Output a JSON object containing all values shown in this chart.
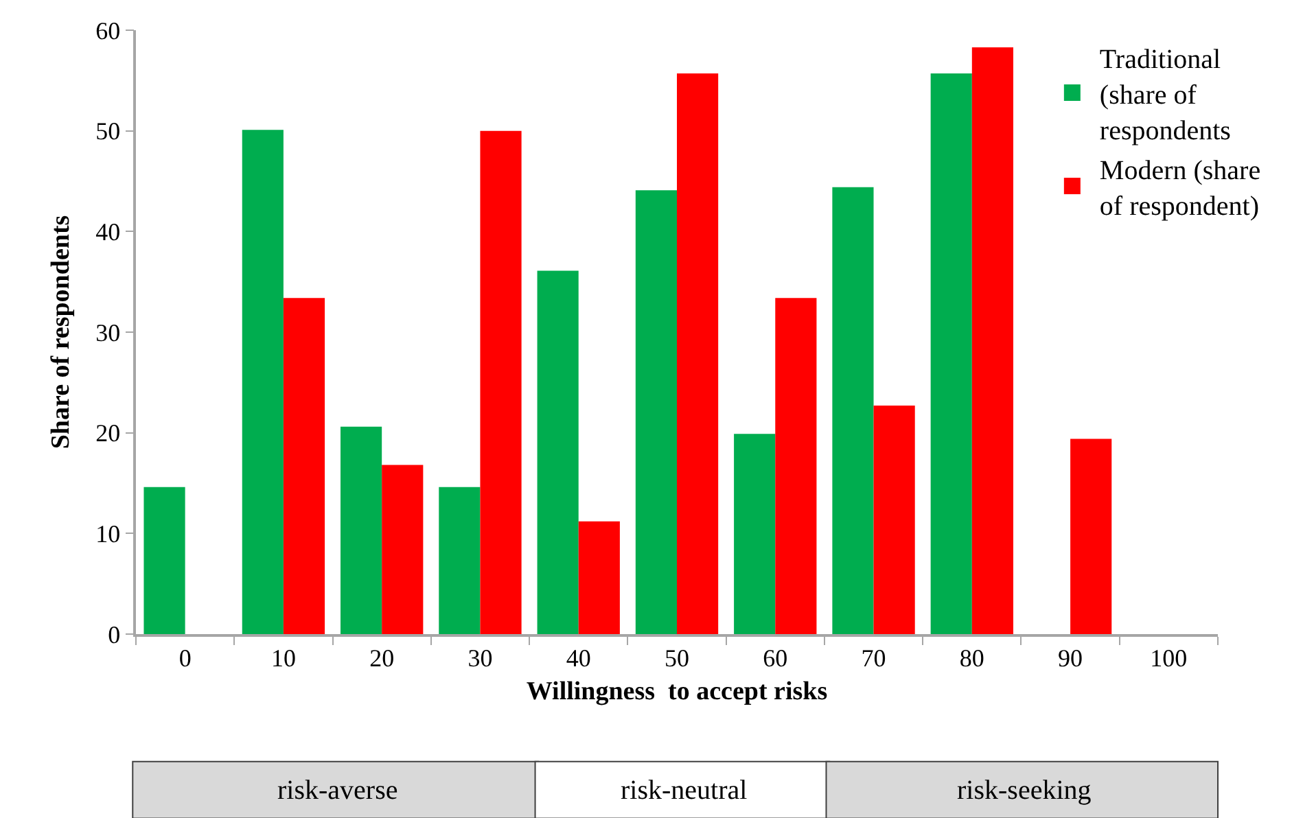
{
  "chart_data": {
    "type": "bar",
    "categories": [
      "0",
      "10",
      "20",
      "30",
      "40",
      "50",
      "60",
      "70",
      "80",
      "90",
      "100"
    ],
    "series": [
      {
        "name": "Traditional (share of respondents",
        "color": "#00ad4f",
        "values": [
          14.6,
          50.1,
          20.6,
          14.6,
          36.1,
          44.1,
          19.9,
          44.4,
          55.7,
          null,
          null
        ]
      },
      {
        "name": "Modern (share of respondent)",
        "color": "#ff0000",
        "values": [
          null,
          33.4,
          16.8,
          50,
          11.2,
          55.7,
          33.4,
          22.7,
          58.3,
          19.4,
          null
        ]
      }
    ],
    "xlabel": "Willingness  to accept risks",
    "ylabel": "Share of respondents",
    "ylim": [
      0,
      60
    ],
    "yticks": [
      0,
      10,
      20,
      30,
      40,
      50,
      60
    ],
    "annotations": [
      "risk-averse",
      "risk-neutral",
      "risk-seeking"
    ],
    "grid": false,
    "legend": "top right"
  }
}
